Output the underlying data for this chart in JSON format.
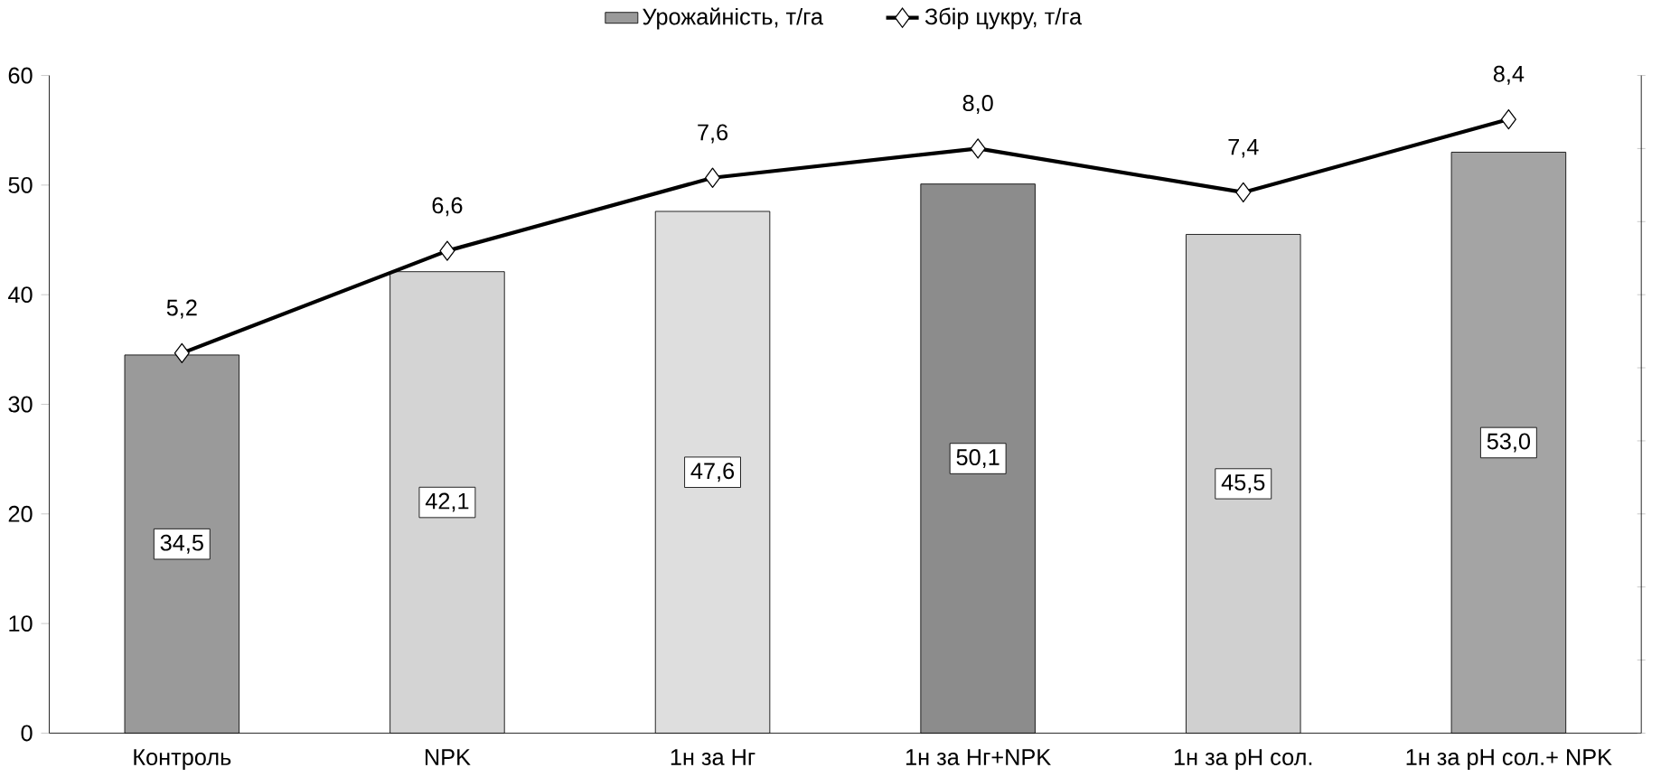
{
  "chart_data": {
    "type": "bar",
    "categories": [
      "Контроль",
      "NPK",
      "1н за Нг",
      "1н за Нг+NPK",
      "1н за рН сол.",
      "1н за рН сол.+ NPK"
    ],
    "series": [
      {
        "name": "Урожайність, т/га",
        "colors": [
          "#9a9a9a",
          "#d4d4d4",
          "#dedede",
          "#8c8c8c",
          "#d0d0d0",
          "#a4a4a4"
        ],
        "values": [
          34.5,
          42.1,
          47.6,
          50.1,
          45.5,
          53.0
        ],
        "value_labels": [
          "34,5",
          "42,1",
          "47,6",
          "50,1",
          "45,5",
          "53,0"
        ]
      },
      {
        "name": "Збір цукру, т/га",
        "type": "line",
        "axis": "y2",
        "color": "#000000",
        "values": [
          5.2,
          6.6,
          7.6,
          8.0,
          7.4,
          8.4
        ],
        "value_labels": [
          "5,2",
          "6,6",
          "7,6",
          "8,0",
          "7,4",
          "8,4"
        ]
      }
    ],
    "ylim": [
      0,
      60
    ],
    "yticks": [
      0,
      10,
      20,
      30,
      40,
      50,
      60
    ],
    "y2lim": [
      0,
      9
    ],
    "y2ticks": [
      {
        "value": 0,
        "label": null
      },
      {
        "value": 1,
        "label": null
      },
      {
        "value": 2,
        "label": null
      },
      {
        "value": 3,
        "label": null
      },
      {
        "value": 4,
        "label": null
      },
      {
        "value": 5,
        "label": null
      },
      {
        "value": 6,
        "label": null
      },
      {
        "value": 7,
        "label": null
      },
      {
        "value": 8,
        "label": null
      },
      {
        "value": 9,
        "label": null
      }
    ],
    "marker": "diamond",
    "legend": "top",
    "grid": false
  }
}
